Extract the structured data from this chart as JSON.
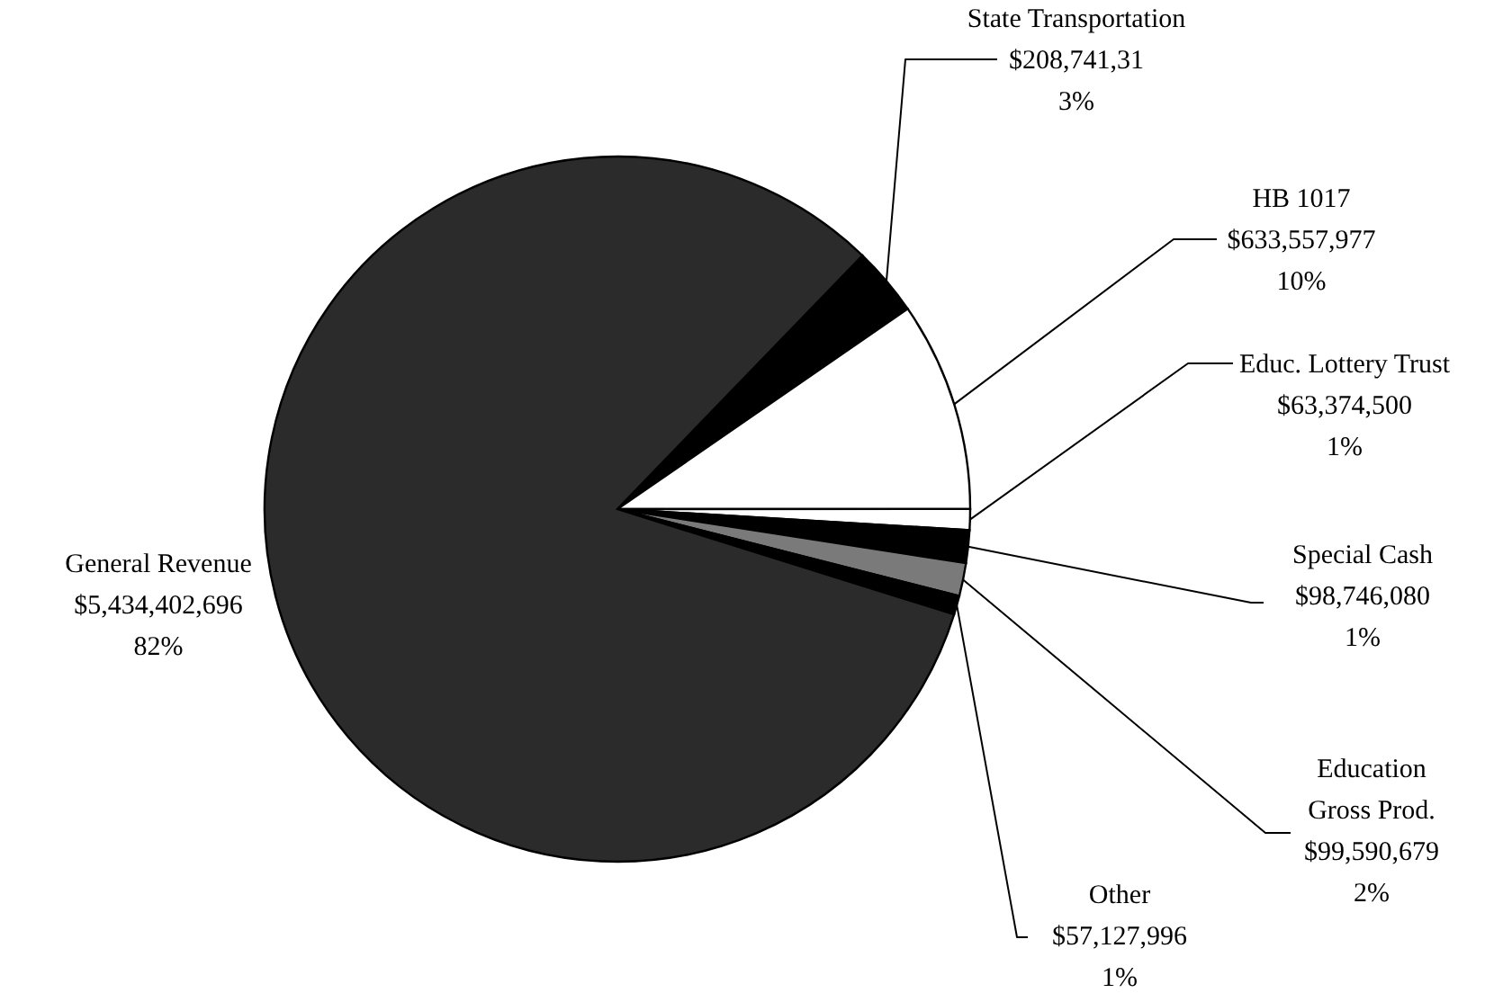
{
  "chart_data": {
    "type": "pie",
    "categories": [
      "State Transportation",
      "HB 1017",
      "Educ. Lottery Trust",
      "Special Cash",
      "Education Gross Prod.",
      "Other",
      "General Revenue"
    ],
    "values": [
      208741310,
      633557977,
      63374500,
      98746080,
      99590679,
      57127996,
      5434402696
    ],
    "value_labels": [
      "$208,741,31\n3%",
      "$633,557,977\n10%",
      "$63,374,500\n1%",
      "$98,746,080\n1%",
      "$99,590,679\n2%",
      "$57,127,996\n1%",
      "$5,434,402,696\n82%"
    ],
    "colors": [
      "#000000",
      "#ffffff",
      "#ffffff",
      "#000000",
      "#7a7a7a",
      "#000000",
      "#2b2b2b"
    ]
  }
}
